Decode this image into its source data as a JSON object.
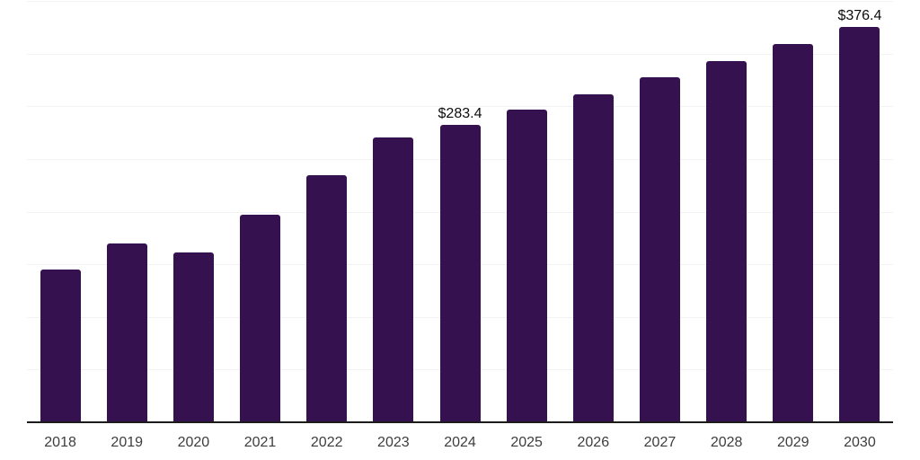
{
  "chart": {
    "background": "#ffffff",
    "bar_color": "#36114F",
    "grid_color": "#f2f2f2",
    "axis_line_color": "#1c1c1c",
    "tick_label_color": "#3d3d3d",
    "data_label_color": "#0d0d0d"
  },
  "chart_data": {
    "type": "bar",
    "title": "",
    "xlabel": "",
    "ylabel": "",
    "categories": [
      "2018",
      "2019",
      "2020",
      "2021",
      "2022",
      "2023",
      "2024",
      "2025",
      "2026",
      "2027",
      "2028",
      "2029",
      "2030"
    ],
    "values": [
      146,
      171,
      162,
      198,
      235,
      271,
      283.4,
      298,
      312,
      328,
      344,
      360,
      376.4
    ],
    "data_labels": {
      "2024": "$283.4",
      "2030": "$376.4"
    },
    "ylim": [
      0,
      400
    ],
    "gridline_step": 50,
    "grid": true,
    "y_axis_tick_labels_visible": false,
    "legend": "none",
    "currency_prefix": "$"
  }
}
